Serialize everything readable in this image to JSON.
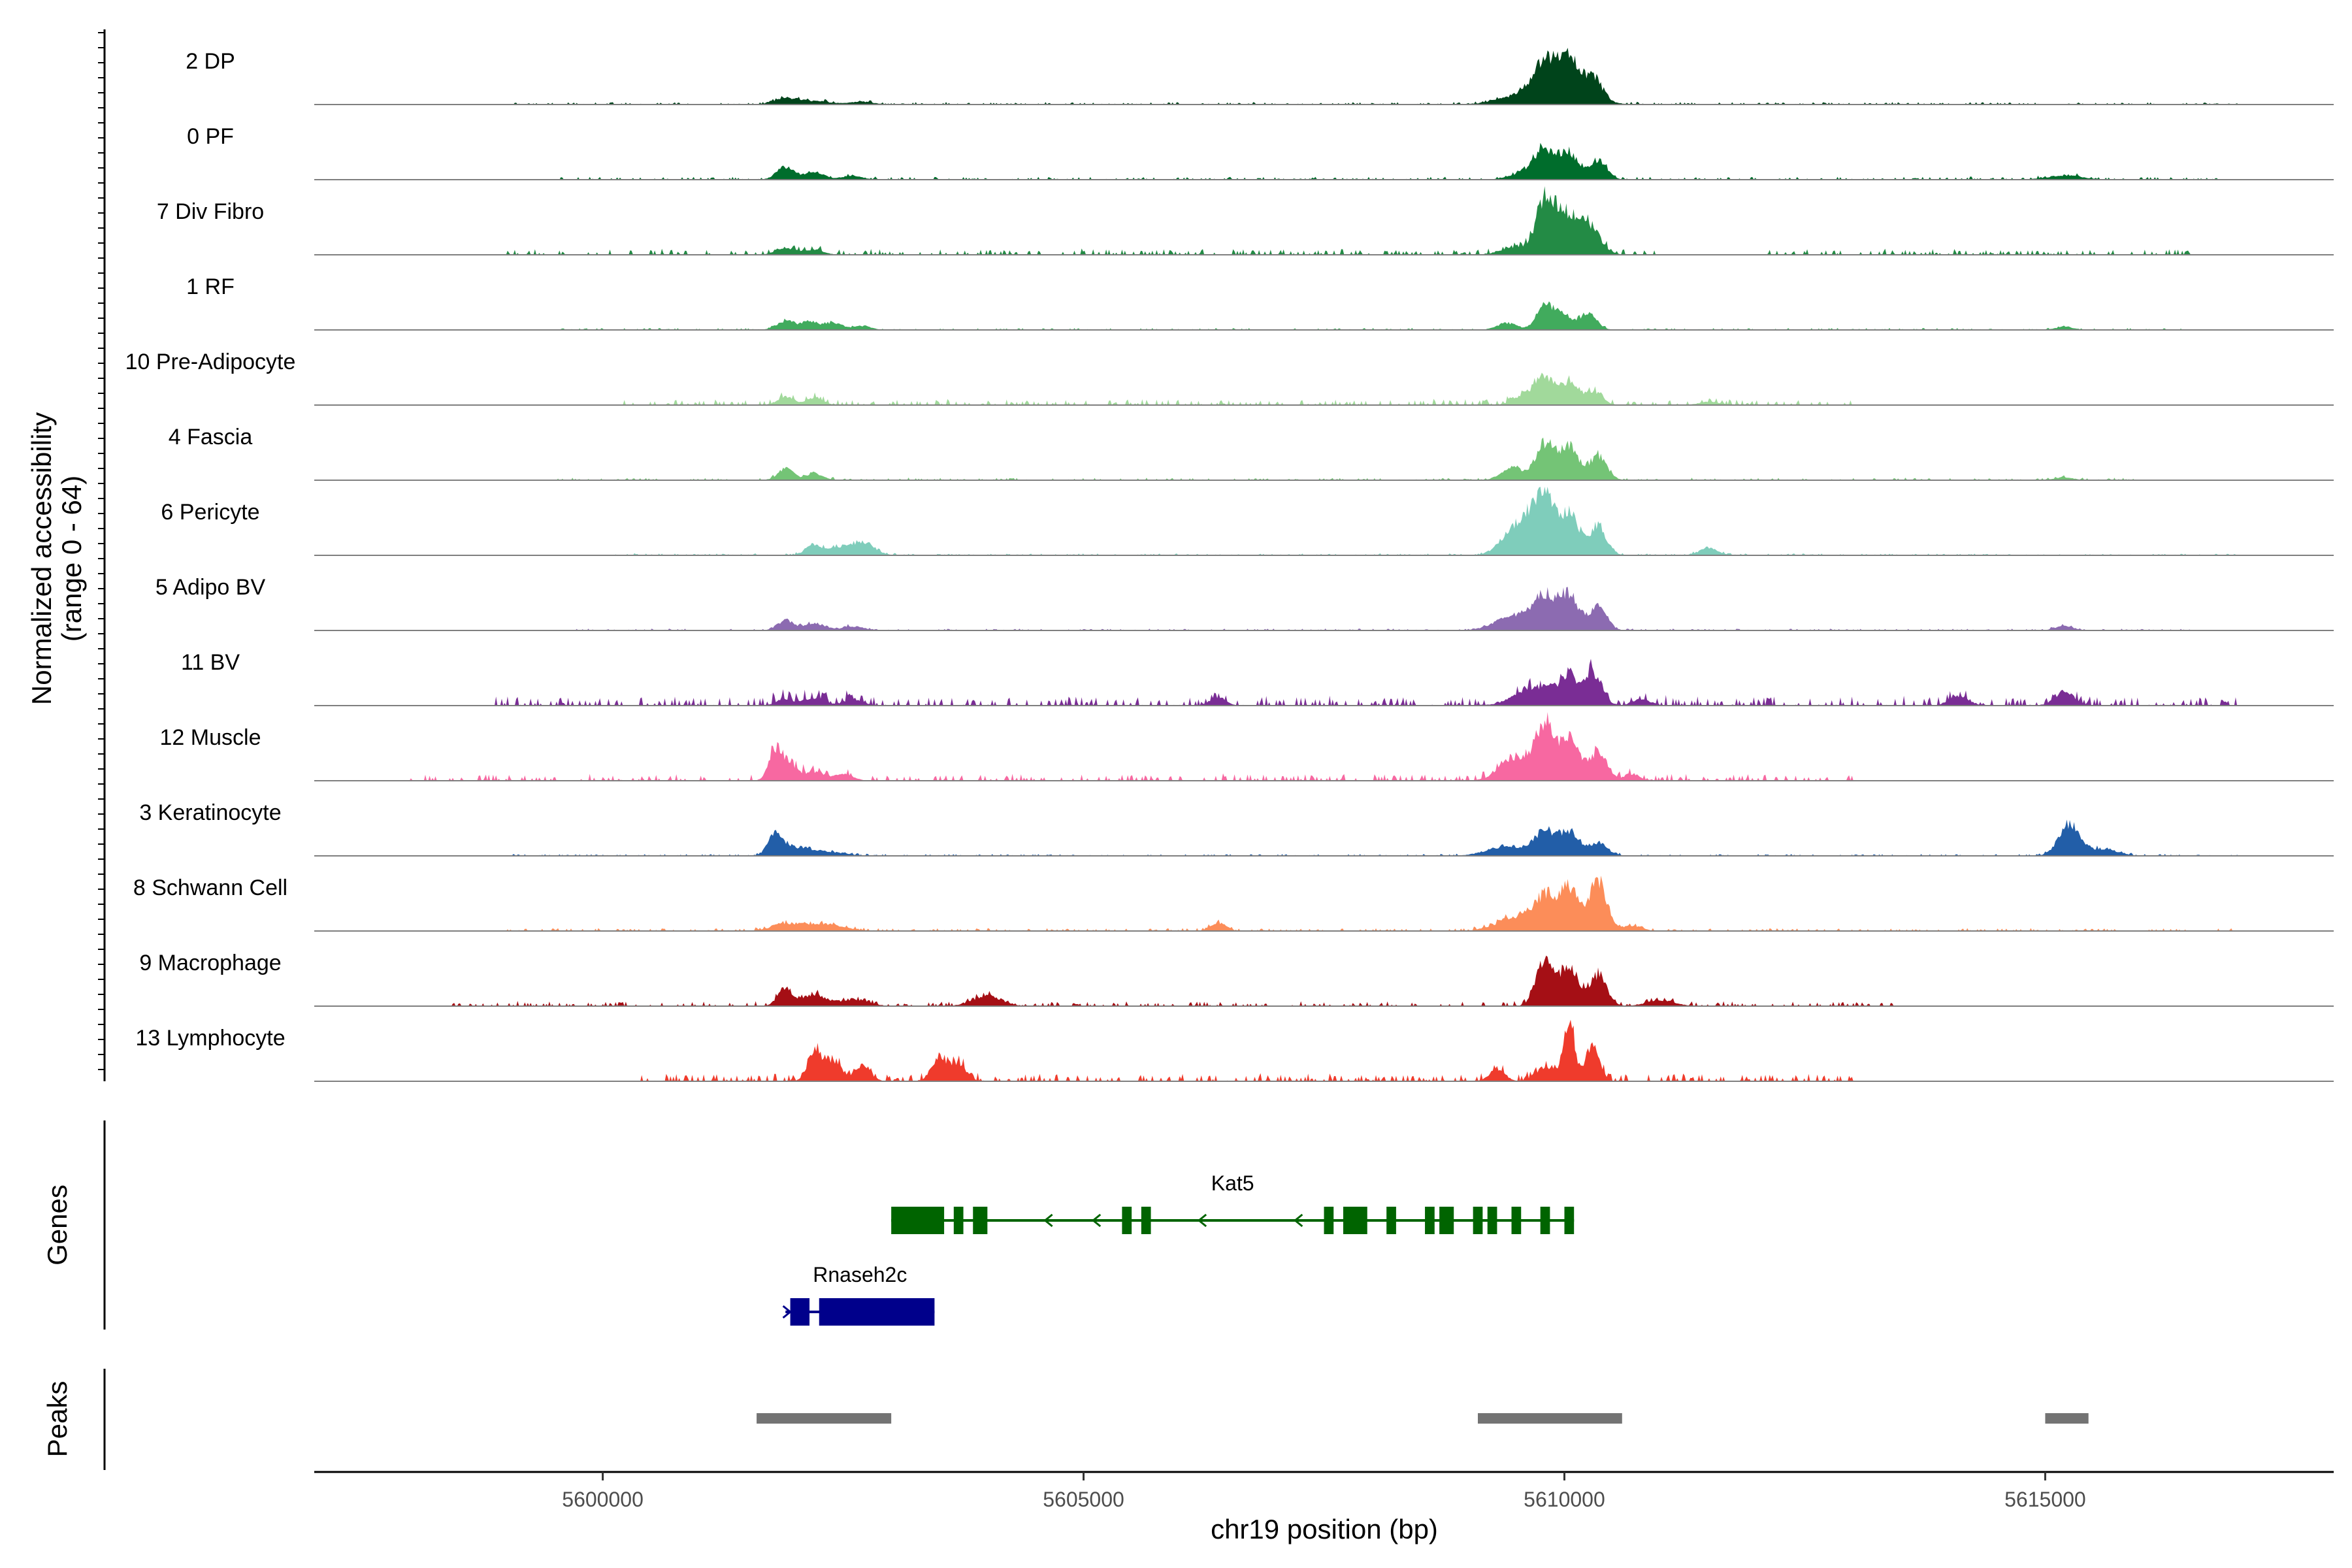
{
  "chart_data": {
    "type": "area",
    "title": "",
    "ylabel_line1": "Normalized accessibility",
    "ylabel_line2": "(range 0 - 64)",
    "y_range": [
      0,
      64
    ],
    "xlabel": "chr19 position (bp)",
    "xlim": [
      5597000,
      5618000
    ],
    "x_ticks": [
      5600000,
      5605000,
      5610000,
      5615000
    ],
    "x_tick_labels": [
      "5600000",
      "5605000",
      "5610000",
      "5615000"
    ],
    "genes_label": "Genes",
    "peaks_label": "Peaks",
    "tracks": [
      {
        "name": "2 DP",
        "color": "#00441b",
        "peaks": [
          [
            5601900,
            0.08,
            120
          ],
          [
            5602200,
            0.05,
            180
          ],
          [
            5602700,
            0.04,
            120
          ],
          [
            5609500,
            0.09,
            220
          ],
          [
            5609800,
            0.45,
            120
          ],
          [
            5610050,
            0.48,
            100
          ],
          [
            5610300,
            0.32,
            90
          ],
          [
            5609950,
            0.2,
            280
          ]
        ],
        "noise": 0.025,
        "noise_regions": [
          [
            5599000,
            5617000
          ]
        ]
      },
      {
        "name": "0 PF",
        "color": "#006d2c",
        "peaks": [
          [
            5601900,
            0.18,
            90
          ],
          [
            5602200,
            0.1,
            110
          ],
          [
            5602600,
            0.06,
            100
          ],
          [
            5609800,
            0.42,
            110
          ],
          [
            5610050,
            0.38,
            90
          ],
          [
            5610350,
            0.28,
            90
          ],
          [
            5609600,
            0.1,
            150
          ],
          [
            5615200,
            0.06,
            180
          ]
        ],
        "noise": 0.03,
        "noise_regions": [
          [
            5599500,
            5617000
          ]
        ]
      },
      {
        "name": "7 Div Fibro",
        "color": "#238b45",
        "peaks": [
          [
            5609800,
            0.75,
            90
          ],
          [
            5610000,
            0.55,
            120
          ],
          [
            5610250,
            0.4,
            120
          ],
          [
            5609500,
            0.12,
            150
          ],
          [
            5601900,
            0.1,
            100
          ],
          [
            5602200,
            0.07,
            100
          ]
        ],
        "noise": 0.06,
        "noise_regions": [
          [
            5599000,
            5611000
          ],
          [
            5612000,
            5616500
          ]
        ]
      },
      {
        "name": "1 RF",
        "color": "#41ab5d",
        "peaks": [
          [
            5601900,
            0.13,
            90
          ],
          [
            5602150,
            0.12,
            90
          ],
          [
            5602400,
            0.1,
            90
          ],
          [
            5602700,
            0.06,
            90
          ],
          [
            5609400,
            0.1,
            100
          ],
          [
            5609800,
            0.35,
            90
          ],
          [
            5610000,
            0.2,
            90
          ],
          [
            5610250,
            0.23,
            90
          ],
          [
            5615200,
            0.04,
            100
          ]
        ],
        "noise": 0.02,
        "noise_regions": [
          [
            5599500,
            5616500
          ]
        ]
      },
      {
        "name": "10 Pre-Adipocyte",
        "color": "#a1d99b",
        "peaks": [
          [
            5601900,
            0.12,
            80
          ],
          [
            5602200,
            0.1,
            90
          ],
          [
            5609600,
            0.15,
            120
          ],
          [
            5609800,
            0.38,
            90
          ],
          [
            5610050,
            0.33,
            90
          ],
          [
            5610300,
            0.2,
            90
          ],
          [
            5611500,
            0.05,
            100
          ]
        ],
        "noise": 0.06,
        "noise_regions": [
          [
            5600200,
            5613000
          ]
        ]
      },
      {
        "name": "4 Fascia",
        "color": "#74c476",
        "peaks": [
          [
            5601900,
            0.17,
            80
          ],
          [
            5602200,
            0.1,
            90
          ],
          [
            5609450,
            0.18,
            110
          ],
          [
            5609800,
            0.55,
            100
          ],
          [
            5610050,
            0.48,
            90
          ],
          [
            5610350,
            0.36,
            90
          ],
          [
            5615200,
            0.04,
            100
          ]
        ],
        "noise": 0.025,
        "noise_regions": [
          [
            5599500,
            5616000
          ]
        ]
      },
      {
        "name": "6 Pericyte",
        "color": "#7fcdbb",
        "peaks": [
          [
            5602200,
            0.15,
            90
          ],
          [
            5602700,
            0.2,
            120
          ],
          [
            5602450,
            0.1,
            100
          ],
          [
            5609600,
            0.5,
            120
          ],
          [
            5609800,
            0.85,
            90
          ],
          [
            5610050,
            0.62,
            100
          ],
          [
            5610350,
            0.42,
            90
          ],
          [
            5609400,
            0.2,
            120
          ],
          [
            5611500,
            0.1,
            100
          ]
        ],
        "noise": 0.02,
        "noise_regions": [
          [
            5600000,
            5617000
          ]
        ]
      },
      {
        "name": "5 Adipo BV",
        "color": "#8c6bb1",
        "peaks": [
          [
            5601900,
            0.15,
            80
          ],
          [
            5602200,
            0.1,
            110
          ],
          [
            5602600,
            0.06,
            110
          ],
          [
            5609500,
            0.22,
            200
          ],
          [
            5609800,
            0.45,
            110
          ],
          [
            5610050,
            0.5,
            100
          ],
          [
            5610350,
            0.35,
            90
          ],
          [
            5615200,
            0.06,
            100
          ]
        ],
        "noise": 0.02,
        "noise_regions": [
          [
            5599500,
            5616500
          ]
        ]
      },
      {
        "name": "11 BV",
        "color": "#7a2d95",
        "peaks": [
          [
            5601900,
            0.1,
            90
          ],
          [
            5602200,
            0.11,
            100
          ],
          [
            5602600,
            0.09,
            100
          ],
          [
            5609700,
            0.28,
            200
          ],
          [
            5610050,
            0.38,
            100
          ],
          [
            5610300,
            0.45,
            90
          ],
          [
            5610800,
            0.1,
            90
          ],
          [
            5615200,
            0.2,
            100
          ],
          [
            5614100,
            0.14,
            100
          ],
          [
            5606400,
            0.12,
            80
          ]
        ],
        "noise": 0.1,
        "noise_regions": [
          [
            5598800,
            5617000
          ]
        ]
      },
      {
        "name": "12 Muscle",
        "color": "#f768a1",
        "peaks": [
          [
            5601800,
            0.45,
            70
          ],
          [
            5601950,
            0.22,
            80
          ],
          [
            5602200,
            0.13,
            100
          ],
          [
            5602500,
            0.1,
            100
          ],
          [
            5609500,
            0.35,
            160
          ],
          [
            5609800,
            0.78,
            90
          ],
          [
            5610050,
            0.6,
            100
          ],
          [
            5610350,
            0.42,
            90
          ],
          [
            5610700,
            0.1,
            80
          ]
        ],
        "noise": 0.07,
        "noise_regions": [
          [
            5598000,
            5613000
          ]
        ]
      },
      {
        "name": "3 Keratinocyte",
        "color": "#225ea8",
        "peaks": [
          [
            5601800,
            0.3,
            80
          ],
          [
            5602050,
            0.12,
            150
          ],
          [
            5602400,
            0.05,
            150
          ],
          [
            5609400,
            0.14,
            200
          ],
          [
            5609800,
            0.35,
            110
          ],
          [
            5610050,
            0.32,
            100
          ],
          [
            5610350,
            0.18,
            100
          ],
          [
            5615250,
            0.45,
            110
          ],
          [
            5615600,
            0.1,
            150
          ]
        ],
        "noise": 0.02,
        "noise_regions": [
          [
            5599000,
            5617000
          ]
        ]
      },
      {
        "name": "8 Schwann Cell",
        "color": "#fc8d59",
        "peaks": [
          [
            5601900,
            0.1,
            150
          ],
          [
            5602300,
            0.1,
            200
          ],
          [
            5609500,
            0.2,
            200
          ],
          [
            5609800,
            0.45,
            110
          ],
          [
            5610050,
            0.6,
            100
          ],
          [
            5610350,
            0.72,
            90
          ],
          [
            5606400,
            0.12,
            80
          ],
          [
            5610700,
            0.08,
            100
          ]
        ],
        "noise": 0.03,
        "noise_regions": [
          [
            5599000,
            5617000
          ]
        ]
      },
      {
        "name": "9 Macrophage",
        "color": "#a50f15",
        "peaks": [
          [
            5601900,
            0.25,
            80
          ],
          [
            5602200,
            0.17,
            110
          ],
          [
            5602600,
            0.1,
            150
          ],
          [
            5604000,
            0.15,
            150
          ],
          [
            5609800,
            0.72,
            90
          ],
          [
            5610050,
            0.58,
            90
          ],
          [
            5610350,
            0.46,
            90
          ],
          [
            5611000,
            0.08,
            150
          ]
        ],
        "noise": 0.05,
        "noise_regions": [
          [
            5598400,
            5613500
          ]
        ]
      },
      {
        "name": "13 Lymphocyte",
        "color": "#ef3b2c",
        "peaks": [
          [
            5602200,
            0.45,
            70
          ],
          [
            5602400,
            0.3,
            80
          ],
          [
            5602700,
            0.22,
            80
          ],
          [
            5603500,
            0.35,
            80
          ],
          [
            5603700,
            0.25,
            80
          ],
          [
            5609800,
            0.2,
            100
          ],
          [
            5610050,
            0.82,
            60
          ],
          [
            5610300,
            0.5,
            70
          ],
          [
            5609300,
            0.18,
            80
          ]
        ],
        "noise": 0.08,
        "noise_regions": [
          [
            5600400,
            5613000
          ]
        ]
      }
    ],
    "genes": [
      {
        "name": "Kat5",
        "color": "#006400",
        "strand": "-",
        "start": 5603000,
        "end": 5610100,
        "exons": [
          [
            5603000,
            5603550
          ],
          [
            5603650,
            5603750
          ],
          [
            5603850,
            5604000
          ],
          [
            5605400,
            5605500
          ],
          [
            5605600,
            5605700
          ],
          [
            5607500,
            5607600
          ],
          [
            5607700,
            5607950
          ],
          [
            5608150,
            5608250
          ],
          [
            5608550,
            5608650
          ],
          [
            5608700,
            5608850
          ],
          [
            5609050,
            5609150
          ],
          [
            5609200,
            5609300
          ],
          [
            5609450,
            5609550
          ],
          [
            5609750,
            5609850
          ],
          [
            5610000,
            5610100
          ]
        ],
        "arrows": [
          5604600,
          5605100,
          5606200,
          5607200
        ]
      },
      {
        "name": "Rnaseh2c",
        "color": "#00008b",
        "strand": "+",
        "start": 5601900,
        "end": 5603450,
        "exons": [
          [
            5601950,
            5602150
          ],
          [
            5602250,
            5603450
          ]
        ],
        "arrows": [
          5601950
        ]
      }
    ],
    "peaks": [
      [
        5601600,
        5603000
      ],
      [
        5609100,
        5610600
      ],
      [
        5615000,
        5615450
      ]
    ]
  }
}
